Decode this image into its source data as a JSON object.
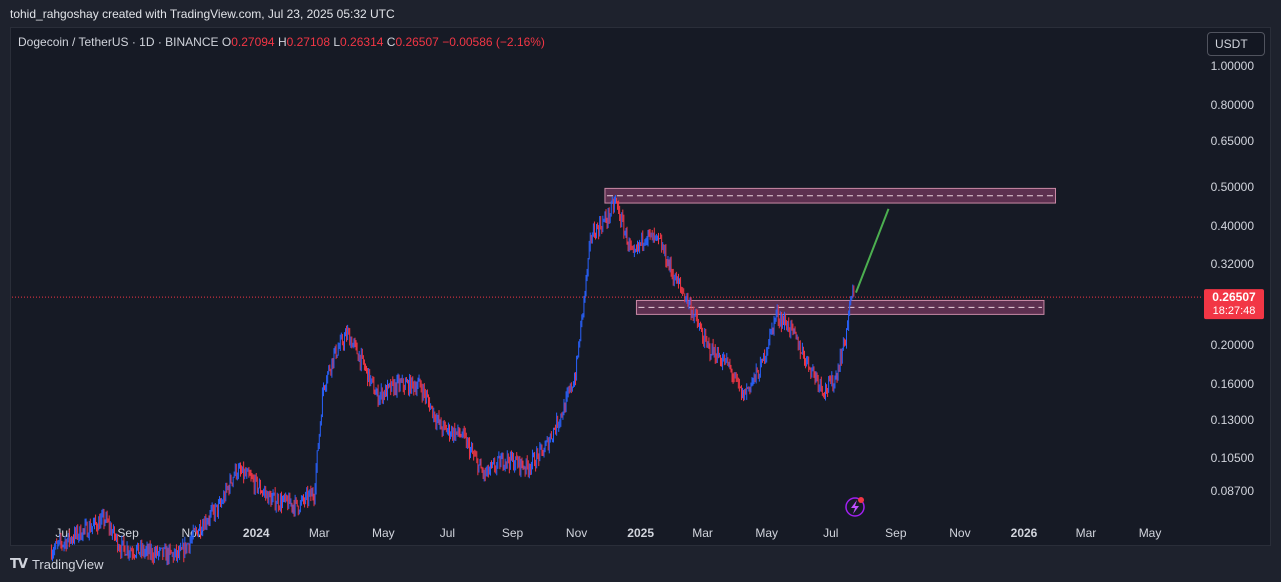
{
  "header": {
    "caption": "tohid_rahgoshay created with TradingView.com, Jul 23, 2025 05:32 UTC"
  },
  "symbol": {
    "name": "Dogecoin / TetherUS · 1D · BINANCE",
    "o_label": "O",
    "o": "0.27094",
    "h_label": "H",
    "h": "0.27108",
    "l_label": "L",
    "l": "0.26314",
    "c_label": "C",
    "c": "0.26507",
    "change": "−0.00586 (−2.16%)"
  },
  "currency_button": "USDT",
  "price_tag": {
    "price": "0.26507",
    "countdown": "18:27:48"
  },
  "footer": {
    "brand": "TradingView"
  },
  "colors": {
    "up": "#2962ff",
    "down": "#f23645",
    "zone_fill": "#5d3050",
    "zone_stroke": "#c98aa6",
    "arrow": "#4caf50",
    "price_tag": "#f23645"
  },
  "chart_data": {
    "type": "candlestick",
    "scale": "log",
    "symbol": "DOGEUSDT",
    "interval": "1D",
    "y_ticks": [
      "1.00000",
      "0.80000",
      "0.65000",
      "0.50000",
      "0.40000",
      "0.32000",
      "0.20000",
      "0.16000",
      "0.13000",
      "0.10500",
      "0.08700"
    ],
    "x_ticks": [
      {
        "label": "Jul",
        "bold": false
      },
      {
        "label": "Sep",
        "bold": false
      },
      {
        "label": "Nov",
        "bold": false
      },
      {
        "label": "2024",
        "bold": true
      },
      {
        "label": "Mar",
        "bold": false
      },
      {
        "label": "May",
        "bold": false
      },
      {
        "label": "Jul",
        "bold": false
      },
      {
        "label": "Sep",
        "bold": false
      },
      {
        "label": "Nov",
        "bold": false
      },
      {
        "label": "2025",
        "bold": true
      },
      {
        "label": "Mar",
        "bold": false
      },
      {
        "label": "May",
        "bold": false
      },
      {
        "label": "Jul",
        "bold": false
      },
      {
        "label": "Sep",
        "bold": false
      },
      {
        "label": "Nov",
        "bold": false
      },
      {
        "label": "2026",
        "bold": true
      },
      {
        "label": "Mar",
        "bold": false
      },
      {
        "label": "May",
        "bold": false
      }
    ],
    "price_path": [
      [
        "2023-06-20",
        0.062
      ],
      [
        "2023-07-15",
        0.068
      ],
      [
        "2023-08-10",
        0.074
      ],
      [
        "2023-08-25",
        0.063
      ],
      [
        "2023-09-20",
        0.061
      ],
      [
        "2023-10-20",
        0.06
      ],
      [
        "2023-11-10",
        0.072
      ],
      [
        "2023-11-28",
        0.08
      ],
      [
        "2023-12-12",
        0.098
      ],
      [
        "2023-12-25",
        0.094
      ],
      [
        "2024-01-15",
        0.083
      ],
      [
        "2024-02-10",
        0.08
      ],
      [
        "2024-02-25",
        0.086
      ],
      [
        "2024-03-05",
        0.16
      ],
      [
        "2024-03-15",
        0.19
      ],
      [
        "2024-03-28",
        0.215
      ],
      [
        "2024-04-12",
        0.18
      ],
      [
        "2024-04-25",
        0.15
      ],
      [
        "2024-05-15",
        0.16
      ],
      [
        "2024-06-05",
        0.16
      ],
      [
        "2024-06-25",
        0.125
      ],
      [
        "2024-07-15",
        0.12
      ],
      [
        "2024-08-05",
        0.095
      ],
      [
        "2024-08-25",
        0.105
      ],
      [
        "2024-09-15",
        0.1
      ],
      [
        "2024-10-01",
        0.11
      ],
      [
        "2024-10-20",
        0.14
      ],
      [
        "2024-10-31",
        0.17
      ],
      [
        "2024-11-08",
        0.26
      ],
      [
        "2024-11-15",
        0.38
      ],
      [
        "2024-12-01",
        0.42
      ],
      [
        "2024-12-08",
        0.46
      ],
      [
        "2024-12-25",
        0.33
      ],
      [
        "2025-01-05",
        0.38
      ],
      [
        "2025-01-20",
        0.36
      ],
      [
        "2025-02-01",
        0.3
      ],
      [
        "2025-02-15",
        0.26
      ],
      [
        "2025-03-05",
        0.2
      ],
      [
        "2025-03-25",
        0.18
      ],
      [
        "2025-04-08",
        0.15
      ],
      [
        "2025-04-25",
        0.175
      ],
      [
        "2025-05-10",
        0.24
      ],
      [
        "2025-05-22",
        0.225
      ],
      [
        "2025-06-10",
        0.18
      ],
      [
        "2025-06-25",
        0.155
      ],
      [
        "2025-07-05",
        0.165
      ],
      [
        "2025-07-15",
        0.21
      ],
      [
        "2025-07-21",
        0.27
      ],
      [
        "2025-07-23",
        0.265
      ]
    ],
    "zones": [
      {
        "from": "2024-11-28",
        "to": "2026-01-31",
        "low": 0.455,
        "high": 0.495
      },
      {
        "from": "2024-12-28",
        "to": "2026-01-20",
        "low": 0.24,
        "high": 0.26
      }
    ],
    "projection": {
      "from": [
        "2025-07-25",
        0.272
      ],
      "to": [
        "2025-08-25",
        0.44
      ]
    },
    "last_price": 0.26507
  }
}
